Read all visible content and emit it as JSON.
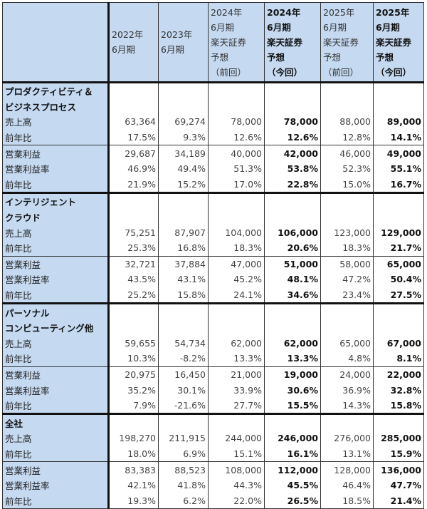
{
  "columns": [
    {
      "lines": [
        "2022年",
        "6月期"
      ],
      "bold": false
    },
    {
      "lines": [
        "2023年",
        "6月期"
      ],
      "bold": false
    },
    {
      "lines": [
        "2024年",
        "6月期",
        "楽天証券",
        "予想",
        "（前回）"
      ],
      "bold": false
    },
    {
      "lines": [
        "2024年",
        "6月期",
        "楽天証券",
        "予想",
        "（今回）"
      ],
      "bold": true
    },
    {
      "lines": [
        "2025年",
        "6月期",
        "楽天証券",
        "予想",
        "（前回）"
      ],
      "bold": false
    },
    {
      "lines": [
        "2025年",
        "6月期",
        "楽天証券",
        "予想",
        "（今回）"
      ],
      "bold": true
    }
  ],
  "sections": [
    {
      "title": [
        "プロダクティビティ＆",
        "ビジネスプロセス"
      ],
      "rows": [
        {
          "label": "売上高",
          "values": [
            "63,364",
            "69,274",
            "78,000",
            "78,000",
            "88,000",
            "89,000"
          ]
        },
        {
          "label": "前年比",
          "values": [
            "17.5%",
            "9.3%",
            "12.6%",
            "12.6%",
            "12.8%",
            "14.1%"
          ]
        },
        {
          "label": "営業利益",
          "values": [
            "29,687",
            "34,189",
            "40,000",
            "42,000",
            "46,000",
            "49,000"
          ]
        },
        {
          "label": "営業利益率",
          "values": [
            "46.9%",
            "49.4%",
            "51.3%",
            "53.8%",
            "52.3%",
            "55.1%"
          ]
        },
        {
          "label": "前年比",
          "values": [
            "21.9%",
            "15.2%",
            "17.0%",
            "22.8%",
            "15.0%",
            "16.7%"
          ]
        }
      ]
    },
    {
      "title": [
        "インテリジェント",
        "クラウド"
      ],
      "rows": [
        {
          "label": "売上高",
          "values": [
            "75,251",
            "87,907",
            "104,000",
            "106,000",
            "123,000",
            "129,000"
          ]
        },
        {
          "label": "前年比",
          "values": [
            "25.3%",
            "16.8%",
            "18.3%",
            "20.6%",
            "18.3%",
            "21.7%"
          ]
        },
        {
          "label": "営業利益",
          "values": [
            "32,721",
            "37,884",
            "47,000",
            "51,000",
            "58,000",
            "65,000"
          ]
        },
        {
          "label": "営業利益率",
          "values": [
            "43.5%",
            "43.1%",
            "45.2%",
            "48.1%",
            "47.2%",
            "50.4%"
          ]
        },
        {
          "label": "前年比",
          "values": [
            "25.2%",
            "15.8%",
            "24.1%",
            "34.6%",
            "23.4%",
            "27.5%"
          ]
        }
      ]
    },
    {
      "title": [
        "パーソナル",
        "コンピューティング他"
      ],
      "rows": [
        {
          "label": "売上高",
          "values": [
            "59,655",
            "54,734",
            "62,000",
            "62,000",
            "65,000",
            "67,000"
          ]
        },
        {
          "label": "前年比",
          "values": [
            "10.3%",
            "-8.2%",
            "13.3%",
            "13.3%",
            "4.8%",
            "8.1%"
          ]
        },
        {
          "label": "営業利益",
          "values": [
            "20,975",
            "16,450",
            "21,000",
            "19,000",
            "24,000",
            "22,000"
          ]
        },
        {
          "label": "営業利益率",
          "values": [
            "35.2%",
            "30.1%",
            "33.9%",
            "30.6%",
            "36.9%",
            "32.8%"
          ]
        },
        {
          "label": "前年比",
          "values": [
            "7.9%",
            "-21.6%",
            "27.7%",
            "15.5%",
            "14.3%",
            "15.8%"
          ]
        }
      ]
    },
    {
      "title": [
        "全社"
      ],
      "rows": [
        {
          "label": "売上高",
          "values": [
            "198,270",
            "211,915",
            "244,000",
            "246,000",
            "276,000",
            "285,000"
          ]
        },
        {
          "label": "前年比",
          "values": [
            "18.0%",
            "6.9%",
            "15.1%",
            "16.1%",
            "13.1%",
            "15.9%"
          ]
        },
        {
          "label": "営業利益",
          "values": [
            "83,383",
            "88,523",
            "108,000",
            "112,000",
            "128,000",
            "136,000"
          ]
        },
        {
          "label": "営業利益率",
          "values": [
            "42.1%",
            "41.8%",
            "44.3%",
            "45.5%",
            "46.4%",
            "47.7%"
          ]
        },
        {
          "label": "前年比",
          "values": [
            "19.3%",
            "6.2%",
            "22.0%",
            "26.5%",
            "18.5%",
            "21.4%"
          ]
        }
      ]
    }
  ]
}
